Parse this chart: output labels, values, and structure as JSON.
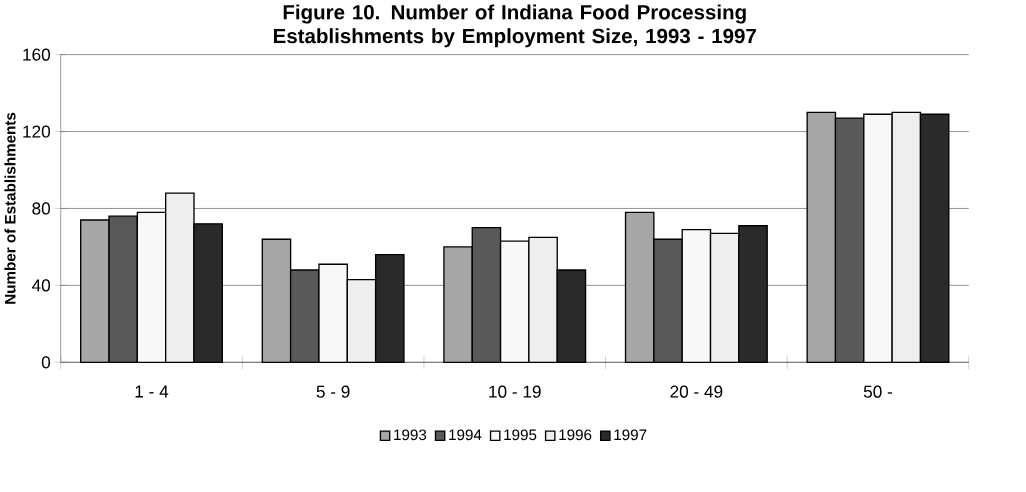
{
  "chart_data": {
    "type": "bar",
    "title": "Figure 10. Number of Indiana Food Processing Establishments by Employment Size, 1993 - 1997",
    "ylabel": "Number of Establishments",
    "categories": [
      "1 - 4",
      "5 - 9",
      "10 - 19",
      "20 - 49",
      "50 -"
    ],
    "series": [
      {
        "name": "1993",
        "color": "#a6a6a6",
        "values": [
          74,
          64,
          60,
          78,
          130
        ]
      },
      {
        "name": "1994",
        "color": "#595959",
        "values": [
          76,
          48,
          70,
          64,
          127
        ]
      },
      {
        "name": "1995",
        "color": "#f8f8f8",
        "values": [
          78,
          51,
          63,
          69,
          129
        ]
      },
      {
        "name": "1996",
        "color": "#eeeeee",
        "values": [
          88,
          43,
          65,
          67,
          130
        ]
      },
      {
        "name": "1997",
        "color": "#2a2a2a",
        "values": [
          72,
          56,
          48,
          71,
          129
        ]
      }
    ],
    "ylim": [
      0,
      160
    ],
    "yticks": [
      0,
      40,
      80,
      120,
      160
    ],
    "grid": "y",
    "legend": "bottom"
  }
}
